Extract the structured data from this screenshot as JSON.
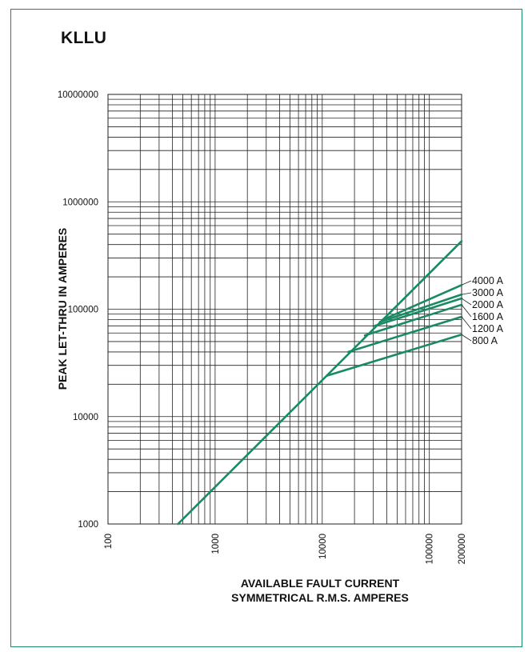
{
  "title": "KLLU",
  "chart_data": {
    "type": "line",
    "title": "KLLU",
    "xlabel": "AVAILABLE FAULT CURRENT",
    "xlabel_line2": "SYMMETRICAL R.M.S. AMPERES",
    "ylabel": "PEAK LET-THRU IN AMPERES",
    "x_scale": "log",
    "y_scale": "log",
    "xlim": [
      100,
      200000
    ],
    "ylim": [
      1000,
      10000000
    ],
    "x_ticks": [
      "100",
      "1000",
      "10000",
      "100000",
      "200000"
    ],
    "y_ticks": [
      "1000",
      "10000",
      "100000",
      "1000000",
      "10000000"
    ],
    "grid": true,
    "colors": {
      "line": "#1a8a63",
      "grid": "#222222",
      "frame": "#1a8a63"
    },
    "series": [
      {
        "name": "threshold",
        "x": [
          450,
          200000
        ],
        "y": [
          1000,
          430000
        ]
      },
      {
        "name": "800 A",
        "x": [
          11000,
          200000
        ],
        "y": [
          24000,
          58000
        ]
      },
      {
        "name": "1200 A",
        "x": [
          17500,
          200000
        ],
        "y": [
          40000,
          85000
        ]
      },
      {
        "name": "1600 A",
        "x": [
          25000,
          200000
        ],
        "y": [
          57000,
          110000
        ]
      },
      {
        "name": "2000 A",
        "x": [
          31000,
          200000
        ],
        "y": [
          70000,
          126000
        ]
      },
      {
        "name": "3000 A",
        "x": [
          34500,
          200000
        ],
        "y": [
          76000,
          137000
        ]
      },
      {
        "name": "4000 A",
        "x": [
          36000,
          200000
        ],
        "y": [
          79000,
          168000
        ]
      }
    ],
    "series_labels": [
      "4000 A",
      "3000 A",
      "2000 A",
      "1600 A",
      "1200 A",
      "800 A"
    ]
  }
}
